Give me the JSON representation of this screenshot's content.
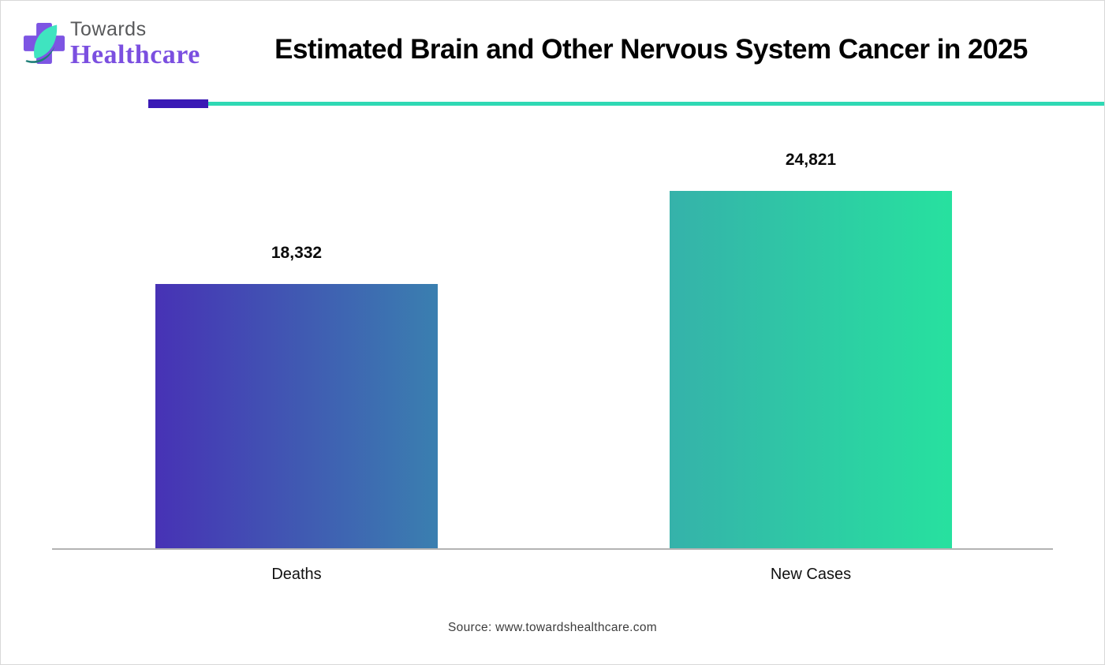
{
  "header": {
    "brand_top": "Towards",
    "brand_bottom": "Healthcare",
    "title": "Estimated Brain and Other Nervous System Cancer in 2025"
  },
  "brand_colors": {
    "cross_purple": "#7d55e3",
    "leaf_mint": "#3fe4c0",
    "swoosh_teal": "#1e7f78",
    "brand_gray": "#58595b",
    "brand_text_purple": "#7b4fe0"
  },
  "divider": {
    "accent_color": "#3a1ab5",
    "line_color": "#2fd9b4"
  },
  "chart_data": {
    "type": "bar",
    "title": "Estimated Brain and Other Nervous System Cancer in 2025",
    "categories": [
      "Deaths",
      "New Cases"
    ],
    "values": [
      18332,
      24821
    ],
    "value_labels": [
      "18,332",
      "24,821"
    ],
    "xlabel": "",
    "ylabel": "",
    "ylim": [
      0,
      30000
    ],
    "grid": false,
    "legend": false,
    "bar_gradients": [
      [
        "#4732b5",
        "#3a7fb0"
      ],
      [
        "#35b2aa",
        "#27e19f"
      ]
    ],
    "axis_line_color": "#b3b3b3"
  },
  "footer": {
    "source": "Source: www.towardshealthcare.com"
  }
}
